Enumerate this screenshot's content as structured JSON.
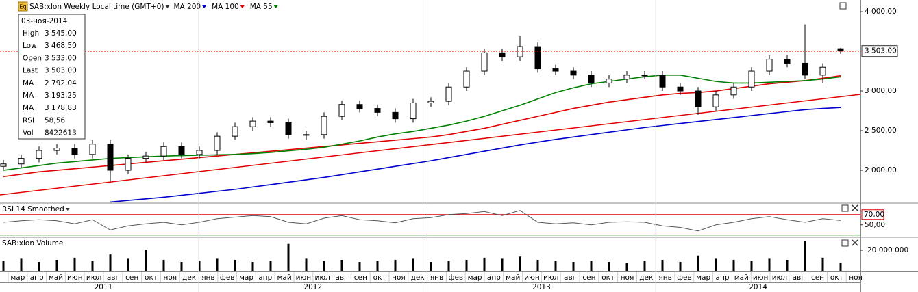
{
  "icon": "Eq",
  "info_panel": {
    "date": "03-ноя-2014",
    "rows": [
      {
        "label": "High",
        "value": "3 545,00"
      },
      {
        "label": "Low",
        "value": "3 468,50"
      },
      {
        "label": "Open",
        "value": "3 533,00"
      },
      {
        "label": "Last",
        "value": "3 503,00"
      },
      {
        "label": "MA",
        "value": "2 792,04",
        "color": "#0000cc"
      },
      {
        "label": "MA",
        "value": "3 193,25",
        "color": "#e00000"
      },
      {
        "label": "MA",
        "value": "3 178,83",
        "color": "#008000"
      },
      {
        "label": "RSI",
        "value": "58,56"
      },
      {
        "label": "Vol",
        "value": "8422613"
      }
    ]
  },
  "x_axis": {
    "years": [
      {
        "year": "2011",
        "months": [
          "мар",
          "апр",
          "май",
          "июн",
          "июл",
          "авг",
          "сен",
          "окт",
          "ноя",
          "дек"
        ]
      },
      {
        "year": "2012",
        "months": [
          "янв",
          "фев",
          "мар",
          "апр",
          "май",
          "июн",
          "июл",
          "авг",
          "сен",
          "окт",
          "ноя",
          "дек"
        ]
      },
      {
        "year": "2013",
        "months": [
          "янв",
          "фев",
          "мар",
          "апр",
          "май",
          "июн",
          "июл",
          "авг",
          "сен",
          "окт",
          "ноя",
          "дек"
        ]
      },
      {
        "year": "2014",
        "months": [
          "янв",
          "фев",
          "мар",
          "апр",
          "май",
          "июн",
          "июл",
          "авг",
          "сен",
          "окт",
          "ноя"
        ]
      }
    ]
  },
  "chart_data": [
    {
      "type": "candlestick",
      "title": "SAB:xlon Weekly Local time (GMT+0)",
      "ylim": [
        1595,
        4147
      ],
      "yticks": [
        {
          "value": 2000,
          "label": "2 000,00"
        },
        {
          "value": 2500,
          "label": "2 500,00"
        },
        {
          "value": 3000,
          "label": "3 000,00"
        },
        {
          "value": 4000,
          "label": "4 000,00"
        }
      ],
      "open": [
        2050,
        2080,
        2150,
        2250,
        2280,
        2200,
        2330,
        2000,
        2150,
        2180,
        2300,
        2200,
        2250,
        2430,
        2550,
        2620,
        2600,
        2450,
        2450,
        2680,
        2830,
        2780,
        2730,
        2650,
        2850,
        2870,
        3050,
        3250,
        3480,
        3430,
        3560,
        3280,
        3250,
        3200,
        3100,
        3150,
        3200,
        3200,
        3050,
        3000,
        2800,
        2950,
        3050,
        3250,
        3400,
        3350,
        3200,
        3533
      ],
      "high": [
        2130,
        2200,
        2300,
        2330,
        2330,
        2380,
        2380,
        2200,
        2230,
        2350,
        2350,
        2300,
        2480,
        2600,
        2670,
        2670,
        2650,
        2500,
        2730,
        2880,
        2880,
        2830,
        2780,
        2900,
        2920,
        3100,
        3300,
        3530,
        3530,
        3690,
        3610,
        3330,
        3300,
        3250,
        3200,
        3250,
        3250,
        3250,
        3100,
        3050,
        3000,
        3100,
        3300,
        3450,
        3450,
        3840,
        3350,
        3545
      ],
      "low": [
        2000,
        2030,
        2100,
        2200,
        2150,
        2150,
        1860,
        1950,
        2100,
        2130,
        2150,
        2150,
        2200,
        2380,
        2500,
        2550,
        2400,
        2380,
        2400,
        2630,
        2730,
        2680,
        2600,
        2600,
        2800,
        2820,
        3000,
        3200,
        3380,
        3380,
        3230,
        3200,
        3150,
        3050,
        3050,
        3100,
        3150,
        3000,
        2950,
        2700,
        2750,
        2900,
        3000,
        3200,
        3300,
        3150,
        3100,
        3468.5
      ],
      "close": [
        2080,
        2150,
        2250,
        2280,
        2200,
        2330,
        2000,
        2150,
        2180,
        2300,
        2200,
        2250,
        2430,
        2550,
        2620,
        2600,
        2450,
        2450,
        2680,
        2830,
        2780,
        2730,
        2650,
        2850,
        2870,
        3050,
        3250,
        3480,
        3430,
        3560,
        3280,
        3250,
        3200,
        3100,
        3150,
        3200,
        3200,
        3050,
        3000,
        2800,
        2950,
        3050,
        3250,
        3400,
        3350,
        3200,
        3300,
        3503
      ],
      "up_color": "#ffffff",
      "down_color": "#000000",
      "series": [
        {
          "name": "MA 200",
          "color": "#0000cc",
          "values": [
            null,
            null,
            null,
            null,
            null,
            null,
            1600,
            1620,
            1640,
            1660,
            1685,
            1710,
            1735,
            1760,
            1790,
            1820,
            1850,
            1880,
            1910,
            1945,
            1980,
            2015,
            2050,
            2085,
            2120,
            2160,
            2200,
            2240,
            2280,
            2320,
            2355,
            2390,
            2420,
            2450,
            2480,
            2510,
            2540,
            2565,
            2590,
            2615,
            2640,
            2665,
            2690,
            2715,
            2740,
            2765,
            2780,
            2792.04
          ]
        },
        {
          "name": "MA 100",
          "color": "#e00000",
          "values": [
            1920,
            1950,
            1980,
            2000,
            2020,
            2040,
            2060,
            2080,
            2100,
            2120,
            2140,
            2160,
            2180,
            2200,
            2220,
            2240,
            2260,
            2280,
            2300,
            2320,
            2340,
            2360,
            2380,
            2400,
            2420,
            2450,
            2490,
            2530,
            2580,
            2630,
            2680,
            2730,
            2780,
            2820,
            2860,
            2890,
            2920,
            2950,
            2970,
            2980,
            3000,
            3030,
            3060,
            3090,
            3110,
            3130,
            3160,
            3193.25
          ]
        },
        {
          "name": "MA 55",
          "color": "#008000",
          "values": [
            2000,
            2030,
            2060,
            2090,
            2110,
            2130,
            2150,
            2160,
            2170,
            2180,
            2185,
            2190,
            2195,
            2200,
            2210,
            2225,
            2245,
            2265,
            2290,
            2330,
            2370,
            2420,
            2460,
            2490,
            2530,
            2570,
            2620,
            2680,
            2750,
            2820,
            2900,
            2980,
            3040,
            3090,
            3120,
            3150,
            3180,
            3200,
            3200,
            3160,
            3120,
            3100,
            3100,
            3110,
            3120,
            3130,
            3150,
            3178.83
          ]
        }
      ],
      "trendline": {
        "start": 1690,
        "end": 2957,
        "color": "#e00000"
      },
      "last_price": {
        "value": 3503,
        "label": "3 503,00",
        "color": "#cc0000"
      }
    },
    {
      "type": "line",
      "title": "RSI 14 Smoothed",
      "ylim": [
        27,
        91
      ],
      "color": "#555555",
      "yticks": [
        {
          "value": 50,
          "label": "50,00"
        }
      ],
      "levels": [
        {
          "value": 70,
          "label": "70,00",
          "color": "#e00000"
        },
        {
          "value": 30,
          "color": "#008000"
        }
      ],
      "values": [
        55,
        58,
        60,
        58,
        52,
        60,
        40,
        48,
        52,
        55,
        50,
        55,
        62,
        65,
        68,
        66,
        55,
        52,
        63,
        68,
        60,
        58,
        54,
        62,
        64,
        70,
        72,
        76,
        68,
        78,
        55,
        52,
        54,
        50,
        55,
        56,
        55,
        48,
        45,
        38,
        50,
        55,
        62,
        66,
        60,
        55,
        62,
        58.56
      ]
    },
    {
      "type": "bar",
      "title": "SAB:xlon Volume",
      "ylim": [
        0,
        31600000
      ],
      "color": "#000000",
      "yticks": [
        {
          "value": 20000000,
          "label": "20 000 000"
        }
      ],
      "values": [
        10000000,
        12000000,
        9000000,
        11000000,
        13000000,
        10000000,
        16000000,
        12000000,
        20000000,
        11000000,
        9000000,
        10000000,
        12000000,
        11000000,
        9000000,
        10000000,
        26000000,
        12000000,
        10000000,
        11000000,
        9000000,
        10000000,
        11000000,
        12000000,
        9000000,
        10000000,
        11000000,
        13000000,
        12000000,
        14000000,
        11000000,
        10000000,
        9000000,
        10000000,
        9000000,
        8000000,
        10000000,
        11000000,
        9000000,
        15000000,
        12000000,
        11000000,
        10000000,
        12000000,
        11000000,
        29000000,
        13000000,
        8422613
      ]
    }
  ]
}
